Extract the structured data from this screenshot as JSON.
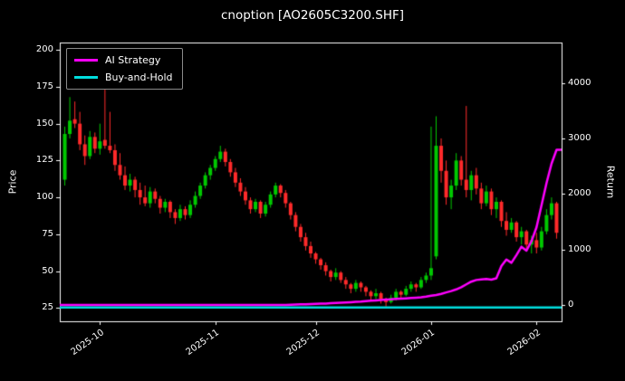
{
  "title": "cnoption [AO2605C3200.SHF]",
  "axes": {
    "left_label": "Price",
    "right_label": "Return"
  },
  "legend": {
    "items": [
      {
        "label": "AI Strategy",
        "color": "#ff00ff"
      },
      {
        "label": "Buy-and-Hold",
        "color": "#00dede"
      }
    ]
  },
  "chart_data": {
    "type": "candlestick",
    "title": "cnoption [AO2605C3200.SHF]",
    "ylabel_left": "Price",
    "ylabel_right": "Return",
    "grid": false,
    "legend_position": "upper-left",
    "price_ticks": [
      25,
      50,
      75,
      100,
      125,
      150,
      175,
      200
    ],
    "return_ticks": [
      0,
      1000,
      2000,
      3000,
      4000
    ],
    "price_range": [
      16,
      205
    ],
    "return_range": [
      -295,
      4735
    ],
    "x_ticks": [
      {
        "index": 7,
        "label": "2025-10"
      },
      {
        "index": 30,
        "label": "2025-11"
      },
      {
        "index": 50,
        "label": "2025-12"
      },
      {
        "index": 73,
        "label": "2026-01"
      },
      {
        "index": 94,
        "label": "2026-02"
      }
    ],
    "colors": {
      "up": "#00c800",
      "down": "#ff2a2a",
      "strategy": "#ff00ff",
      "buy_hold": "#00dede",
      "frame": "#ffffff",
      "background": "#000000"
    },
    "dates": [
      "2025-09-22",
      "2025-09-23",
      "2025-09-24",
      "2025-09-25",
      "2025-09-26",
      "2025-09-29",
      "2025-09-30",
      "2025-10-01",
      "2025-10-02",
      "2025-10-03",
      "2025-10-06",
      "2025-10-07",
      "2025-10-08",
      "2025-10-09",
      "2025-10-10",
      "2025-10-13",
      "2025-10-14",
      "2025-10-15",
      "2025-10-16",
      "2025-10-17",
      "2025-10-20",
      "2025-10-21",
      "2025-10-22",
      "2025-10-23",
      "2025-10-24",
      "2025-10-27",
      "2025-10-28",
      "2025-10-29",
      "2025-10-30",
      "2025-10-31",
      "2025-11-03",
      "2025-11-04",
      "2025-11-05",
      "2025-11-06",
      "2025-11-07",
      "2025-11-10",
      "2025-11-11",
      "2025-11-12",
      "2025-11-13",
      "2025-11-14",
      "2025-11-17",
      "2025-11-18",
      "2025-11-19",
      "2025-11-20",
      "2025-11-21",
      "2025-11-24",
      "2025-11-25",
      "2025-11-26",
      "2025-11-27",
      "2025-11-28",
      "2025-12-01",
      "2025-12-02",
      "2025-12-03",
      "2025-12-04",
      "2025-12-05",
      "2025-12-08",
      "2025-12-09",
      "2025-12-10",
      "2025-12-11",
      "2025-12-12",
      "2025-12-15",
      "2025-12-16",
      "2025-12-17",
      "2025-12-18",
      "2025-12-19",
      "2025-12-22",
      "2025-12-23",
      "2025-12-24",
      "2025-12-25",
      "2025-12-26",
      "2025-12-29",
      "2025-12-30",
      "2025-12-31",
      "2026-01-02",
      "2026-01-05",
      "2026-01-06",
      "2026-01-07",
      "2026-01-08",
      "2026-01-09",
      "2026-01-12",
      "2026-01-13",
      "2026-01-14",
      "2026-01-15",
      "2026-01-16",
      "2026-01-19",
      "2026-01-20",
      "2026-01-21",
      "2026-01-22",
      "2026-01-23",
      "2026-01-26",
      "2026-01-27",
      "2026-01-28",
      "2026-01-29",
      "2026-01-30",
      "2026-02-02",
      "2026-02-03",
      "2026-02-04",
      "2026-02-05",
      "2026-02-06"
    ],
    "ohlc": [
      [
        112,
        148,
        108,
        143
      ],
      [
        143,
        168,
        140,
        152
      ],
      [
        153,
        165,
        147,
        150
      ],
      [
        150,
        158,
        132,
        136
      ],
      [
        136,
        142,
        122,
        128
      ],
      [
        128,
        145,
        126,
        141
      ],
      [
        141,
        144,
        130,
        133
      ],
      [
        133,
        150,
        129,
        138
      ],
      [
        139,
        192,
        133,
        135
      ],
      [
        135,
        158,
        130,
        132
      ],
      [
        132,
        136,
        118,
        122
      ],
      [
        122,
        130,
        112,
        115
      ],
      [
        115,
        121,
        105,
        108
      ],
      [
        108,
        116,
        104,
        112
      ],
      [
        112,
        114,
        100,
        105
      ],
      [
        105,
        110,
        95,
        100
      ],
      [
        100,
        108,
        94,
        96
      ],
      [
        96,
        107,
        93,
        104
      ],
      [
        104,
        106,
        96,
        99
      ],
      [
        99,
        101,
        89,
        93
      ],
      [
        93,
        99,
        90,
        97
      ],
      [
        97,
        98,
        86,
        90
      ],
      [
        90,
        92,
        82,
        86
      ],
      [
        86,
        95,
        84,
        92
      ],
      [
        92,
        94,
        85,
        88
      ],
      [
        88,
        98,
        86,
        95
      ],
      [
        95,
        104,
        93,
        101
      ],
      [
        101,
        110,
        99,
        108
      ],
      [
        108,
        117,
        106,
        115
      ],
      [
        115,
        122,
        112,
        120
      ],
      [
        120,
        128,
        118,
        126
      ],
      [
        126,
        135,
        124,
        131
      ],
      [
        131,
        133,
        121,
        124
      ],
      [
        124,
        126,
        114,
        117
      ],
      [
        117,
        120,
        107,
        110
      ],
      [
        110,
        113,
        101,
        104
      ],
      [
        104,
        107,
        95,
        98
      ],
      [
        98,
        100,
        89,
        92
      ],
      [
        92,
        99,
        90,
        97
      ],
      [
        97,
        98,
        86,
        89
      ],
      [
        89,
        97,
        87,
        95
      ],
      [
        95,
        104,
        93,
        102
      ],
      [
        102,
        110,
        100,
        108
      ],
      [
        108,
        109,
        100,
        103
      ],
      [
        103,
        105,
        93,
        96
      ],
      [
        96,
        97,
        85,
        88
      ],
      [
        88,
        90,
        77,
        80
      ],
      [
        80,
        82,
        70,
        73
      ],
      [
        73,
        76,
        64,
        67
      ],
      [
        67,
        70,
        59,
        62
      ],
      [
        62,
        63,
        55,
        58
      ],
      [
        58,
        59,
        51,
        54
      ],
      [
        54,
        56,
        47,
        50
      ],
      [
        50,
        51,
        43,
        46
      ],
      [
        46,
        52,
        44,
        49
      ],
      [
        49,
        50,
        42,
        44
      ],
      [
        44,
        46,
        38,
        41
      ],
      [
        41,
        42,
        35,
        38
      ],
      [
        38,
        44,
        36,
        42
      ],
      [
        42,
        43,
        36,
        39
      ],
      [
        39,
        40,
        33,
        36
      ],
      [
        36,
        37,
        30,
        33
      ],
      [
        33,
        38,
        31,
        35
      ],
      [
        35,
        36,
        28,
        31
      ],
      [
        31,
        32,
        26,
        29
      ],
      [
        29,
        34,
        28,
        32
      ],
      [
        32,
        38,
        30,
        36
      ],
      [
        36,
        37,
        31,
        34
      ],
      [
        34,
        40,
        33,
        38
      ],
      [
        38,
        43,
        36,
        41
      ],
      [
        41,
        42,
        36,
        39
      ],
      [
        39,
        46,
        38,
        44
      ],
      [
        44,
        49,
        42,
        47
      ],
      [
        47,
        148,
        44,
        52
      ],
      [
        60,
        155,
        58,
        135
      ],
      [
        135,
        140,
        110,
        118
      ],
      [
        118,
        125,
        95,
        100
      ],
      [
        100,
        112,
        92,
        108
      ],
      [
        108,
        130,
        105,
        125
      ],
      [
        125,
        128,
        108,
        112
      ],
      [
        112,
        162,
        100,
        105
      ],
      [
        105,
        118,
        98,
        115
      ],
      [
        115,
        120,
        102,
        106
      ],
      [
        106,
        110,
        92,
        96
      ],
      [
        96,
        108,
        94,
        104
      ],
      [
        104,
        106,
        88,
        92
      ],
      [
        92,
        100,
        86,
        97
      ],
      [
        97,
        98,
        80,
        84
      ],
      [
        84,
        90,
        74,
        78
      ],
      [
        78,
        86,
        76,
        83
      ],
      [
        83,
        84,
        70,
        73
      ],
      [
        73,
        80,
        68,
        77
      ],
      [
        77,
        78,
        64,
        68
      ],
      [
        68,
        74,
        62,
        71
      ],
      [
        71,
        76,
        62,
        66
      ],
      [
        66,
        80,
        64,
        77
      ],
      [
        77,
        92,
        75,
        88
      ],
      [
        88,
        100,
        85,
        96
      ],
      [
        96,
        97,
        72,
        76
      ]
    ],
    "series": [
      {
        "name": "AI Strategy",
        "axis": "return",
        "values": [
          0,
          0,
          0,
          0,
          0,
          0,
          0,
          0,
          0,
          0,
          0,
          0,
          0,
          0,
          0,
          0,
          0,
          0,
          0,
          0,
          0,
          0,
          0,
          0,
          0,
          0,
          0,
          0,
          0,
          0,
          0,
          0,
          0,
          0,
          0,
          0,
          0,
          0,
          0,
          0,
          0,
          0,
          0,
          0,
          0,
          5,
          8,
          10,
          12,
          15,
          18,
          22,
          25,
          30,
          34,
          38,
          42,
          48,
          55,
          60,
          68,
          75,
          82,
          88,
          95,
          100,
          108,
          112,
          118,
          124,
          130,
          138,
          150,
          165,
          180,
          200,
          225,
          250,
          280,
          320,
          370,
          420,
          450,
          460,
          470,
          455,
          480,
          700,
          820,
          760,
          900,
          1050,
          980,
          1150,
          1400,
          1800,
          2200,
          2550,
          2800
        ]
      },
      {
        "name": "Buy-and-Hold",
        "axis": "return",
        "constant": -47
      }
    ]
  }
}
